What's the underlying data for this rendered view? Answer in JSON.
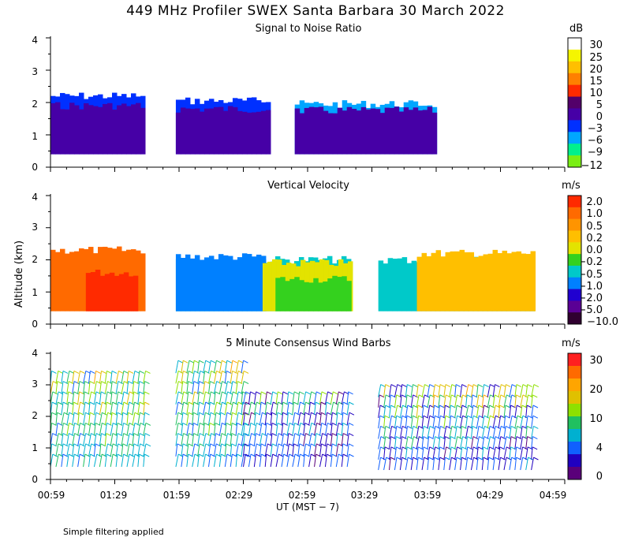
{
  "main_title": "449 MHz Profiler SWEX Santa Barbara 30 March 2022",
  "footnote": "Simple filtering applied",
  "x_axis_label": "UT  (MST − 7)",
  "y_axis_label": "Altitude (km)",
  "x_ticks": [
    "00:59",
    "01:29",
    "01:59",
    "02:29",
    "02:59",
    "03:29",
    "03:59",
    "04:29",
    "04:59"
  ],
  "chart_data": [
    {
      "type": "heatmap",
      "title": "Signal to Noise Ratio",
      "unit": "dB",
      "ylim": [
        0,
        4
      ],
      "yticks": [
        "0",
        "1",
        "2",
        "3",
        "4"
      ],
      "colorbar_ticks": [
        "30",
        "25",
        "20",
        "15",
        "10",
        "5",
        "0",
        "−3",
        "−6",
        "−9",
        "−12"
      ],
      "colorbar_colors": [
        "#ffffff",
        "#f5f500",
        "#ffbf00",
        "#ff8000",
        "#ff2a00",
        "#53006a",
        "#4600a6",
        "#0030ff",
        "#00a6ff",
        "#00f08c",
        "#7aee14"
      ],
      "layers": [
        {
          "t0": 0.0,
          "t1": 1.45,
          "top": 2.2,
          "color": "#0030ff"
        },
        {
          "t0": 0.0,
          "t1": 1.45,
          "top": 1.9,
          "color": "#4600a6"
        },
        {
          "t0": 1.95,
          "t1": 3.35,
          "top": 2.05,
          "color": "#0030ff"
        },
        {
          "t0": 1.95,
          "t1": 3.35,
          "top": 1.8,
          "color": "#4600a6"
        },
        {
          "t0": 3.8,
          "t1": 6.0,
          "top": 1.95,
          "color": "#00a6ff"
        },
        {
          "t0": 3.8,
          "t1": 6.0,
          "top": 1.75,
          "color": "#4600a6"
        }
      ]
    },
    {
      "type": "heatmap",
      "title": "Vertical Velocity",
      "unit": "m/s",
      "ylim": [
        0,
        4
      ],
      "yticks": [
        "0",
        "1",
        "2",
        "3",
        "4"
      ],
      "colorbar_ticks": [
        "2.0",
        "1.0",
        "0.5",
        "0.2",
        "0.0",
        "−0.2",
        "−0.5",
        "−1.0",
        "−2.0",
        "−5.0",
        "−10.0"
      ],
      "colorbar_colors": [
        "#ff2a00",
        "#ff6a00",
        "#ff9400",
        "#ffbf00",
        "#e3e300",
        "#34d11e",
        "#00c9c9",
        "#0080ff",
        "#2000d0",
        "#5a0095",
        "#300030"
      ],
      "layers": [
        {
          "t0": 0.0,
          "t1": 1.45,
          "top": 2.3,
          "color": "#ff6a00"
        },
        {
          "t0": 0.55,
          "t1": 1.35,
          "top": 1.6,
          "color": "#ff2a00"
        },
        {
          "t0": 1.95,
          "t1": 4.65,
          "top": 2.0,
          "color": "#00c9c9"
        },
        {
          "t0": 1.95,
          "t1": 3.3,
          "top": 2.1,
          "color": "#0080ff"
        },
        {
          "t0": 3.3,
          "t1": 4.65,
          "top": 1.9,
          "color": "#e3e300"
        },
        {
          "t0": 3.5,
          "t1": 4.65,
          "top": 1.4,
          "color": "#34d11e"
        },
        {
          "t0": 5.1,
          "t1": 7.5,
          "top": 2.0,
          "color": "#00c9c9"
        },
        {
          "t0": 5.7,
          "t1": 7.5,
          "top": 2.2,
          "color": "#ffbf00"
        }
      ]
    },
    {
      "type": "wind_barbs",
      "title": "5 Minute Consensus Wind Barbs",
      "unit": "m/s",
      "ylim": [
        0,
        4
      ],
      "yticks": [
        "0",
        "1",
        "2",
        "3",
        "4"
      ],
      "colorbar_ticks": [
        "30",
        "20",
        "10",
        "4",
        "0"
      ],
      "colorbar_colors": [
        "#ff2020",
        "#ff6a00",
        "#ffa500",
        "#e0c000",
        "#8ee000",
        "#20c060",
        "#00b0d0",
        "#1060ff",
        "#2000c0",
        "#5a007a"
      ],
      "barb_groups": [
        {
          "t0": 0.0,
          "t1": 1.45,
          "ymin": 0.4,
          "ymax": 3.3,
          "speed_low": 8,
          "speed_high": 20
        },
        {
          "t0": 1.95,
          "t1": 3.0,
          "ymin": 0.4,
          "ymax": 3.4,
          "speed_low": 7,
          "speed_high": 19
        },
        {
          "t0": 3.0,
          "t1": 4.65,
          "ymin": 0.4,
          "ymax": 2.6,
          "speed_low": 1,
          "speed_high": 14
        },
        {
          "t0": 5.1,
          "t1": 7.5,
          "ymin": 0.3,
          "ymax": 2.8,
          "speed_low": 1,
          "speed_high": 20
        }
      ]
    }
  ]
}
